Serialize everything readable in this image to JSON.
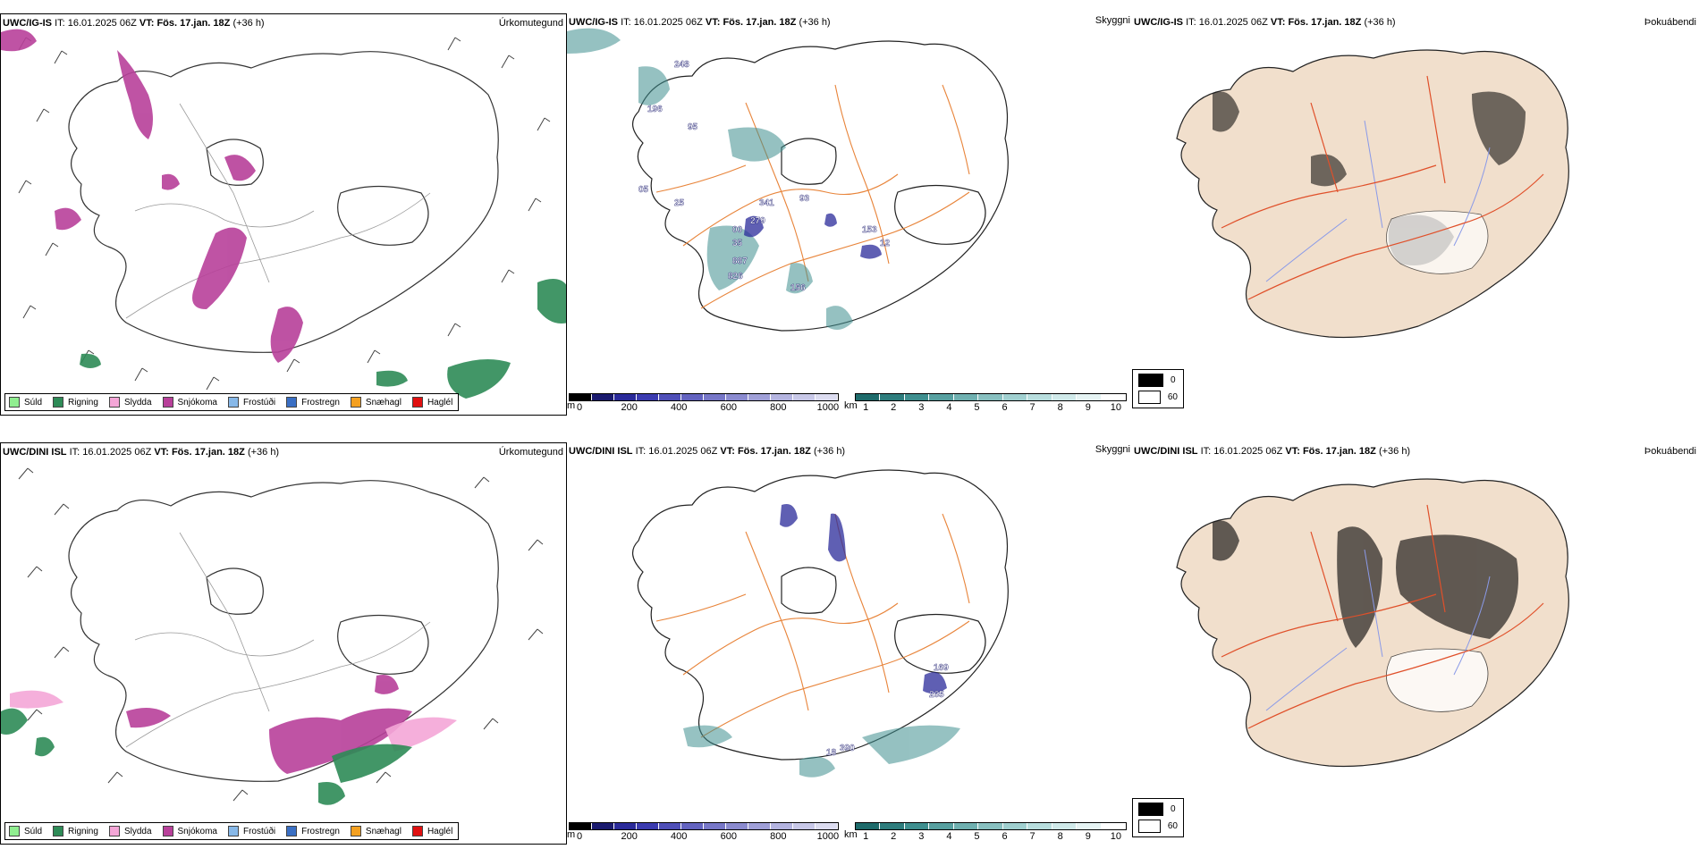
{
  "rows": [
    {
      "model": "UWC/IG-IS",
      "it_label": "IT:",
      "it_value": "16.01.2025 06Z",
      "vt_label": "VT:",
      "vt_value": "Fös. 17.jan. 18Z",
      "lead": "(+36 h)",
      "panels": {
        "precip_type_title": "Úrkomutegund",
        "cloud_title": "Skyggni",
        "fog_title": "Þokuábendi"
      },
      "cloud_labels": [
        "248",
        "196",
        "95",
        "05",
        "25",
        "341",
        "279",
        "00",
        "35",
        "887",
        "826",
        "93",
        "153",
        "12",
        "156"
      ]
    },
    {
      "model": "UWC/DINI ISL",
      "it_label": "IT:",
      "it_value": "16.01.2025 06Z",
      "vt_label": "VT:",
      "vt_value": "Fös. 17.jan. 18Z",
      "lead": "(+36 h)",
      "panels": {
        "precip_type_title": "Úrkomutegund",
        "cloud_title": "Skyggni",
        "fog_title": "Þokuábendi"
      },
      "cloud_labels": [
        "169",
        "265",
        "18",
        "390"
      ]
    }
  ],
  "precip_legend": [
    {
      "label": "Súld",
      "color": "#90ee90"
    },
    {
      "label": "Rigning",
      "color": "#2e8b57"
    },
    {
      "label": "Slydda",
      "color": "#f4a6d7"
    },
    {
      "label": "Snjókoma",
      "color": "#b8409a"
    },
    {
      "label": "Frostúði",
      "color": "#87b8e8"
    },
    {
      "label": "Frostregn",
      "color": "#3a6fc4"
    },
    {
      "label": "Snæhagl",
      "color": "#f4a020"
    },
    {
      "label": "Haglél",
      "color": "#e01010"
    }
  ],
  "ceiling_bar": {
    "unit": "m",
    "ticks": [
      "0",
      "200",
      "400",
      "600",
      "800",
      "1000"
    ],
    "colors": [
      "#000000",
      "#1a1a6e",
      "#2a2a9a",
      "#3b3bb0",
      "#4f4fb8",
      "#6363c0",
      "#7777c8",
      "#8b8bd0",
      "#a0a0d8",
      "#b4b4e0",
      "#c8c8e8",
      "#dcdcf0"
    ]
  },
  "visibility_bar": {
    "unit": "km",
    "ticks": [
      "1",
      "2",
      "3",
      "4",
      "5",
      "6",
      "7",
      "8",
      "9",
      "10"
    ],
    "colors": [
      "#1e6b6b",
      "#2e7d7d",
      "#3f8f8f",
      "#57a0a0",
      "#6fb0b0",
      "#88c0c0",
      "#a0d0d0",
      "#b8dede",
      "#d0eaea",
      "#e6f4f4",
      "#ffffff"
    ]
  },
  "fog_legend": [
    {
      "label": "0",
      "color": "#000000"
    },
    {
      "label": "60",
      "color": "#ffffff"
    }
  ]
}
